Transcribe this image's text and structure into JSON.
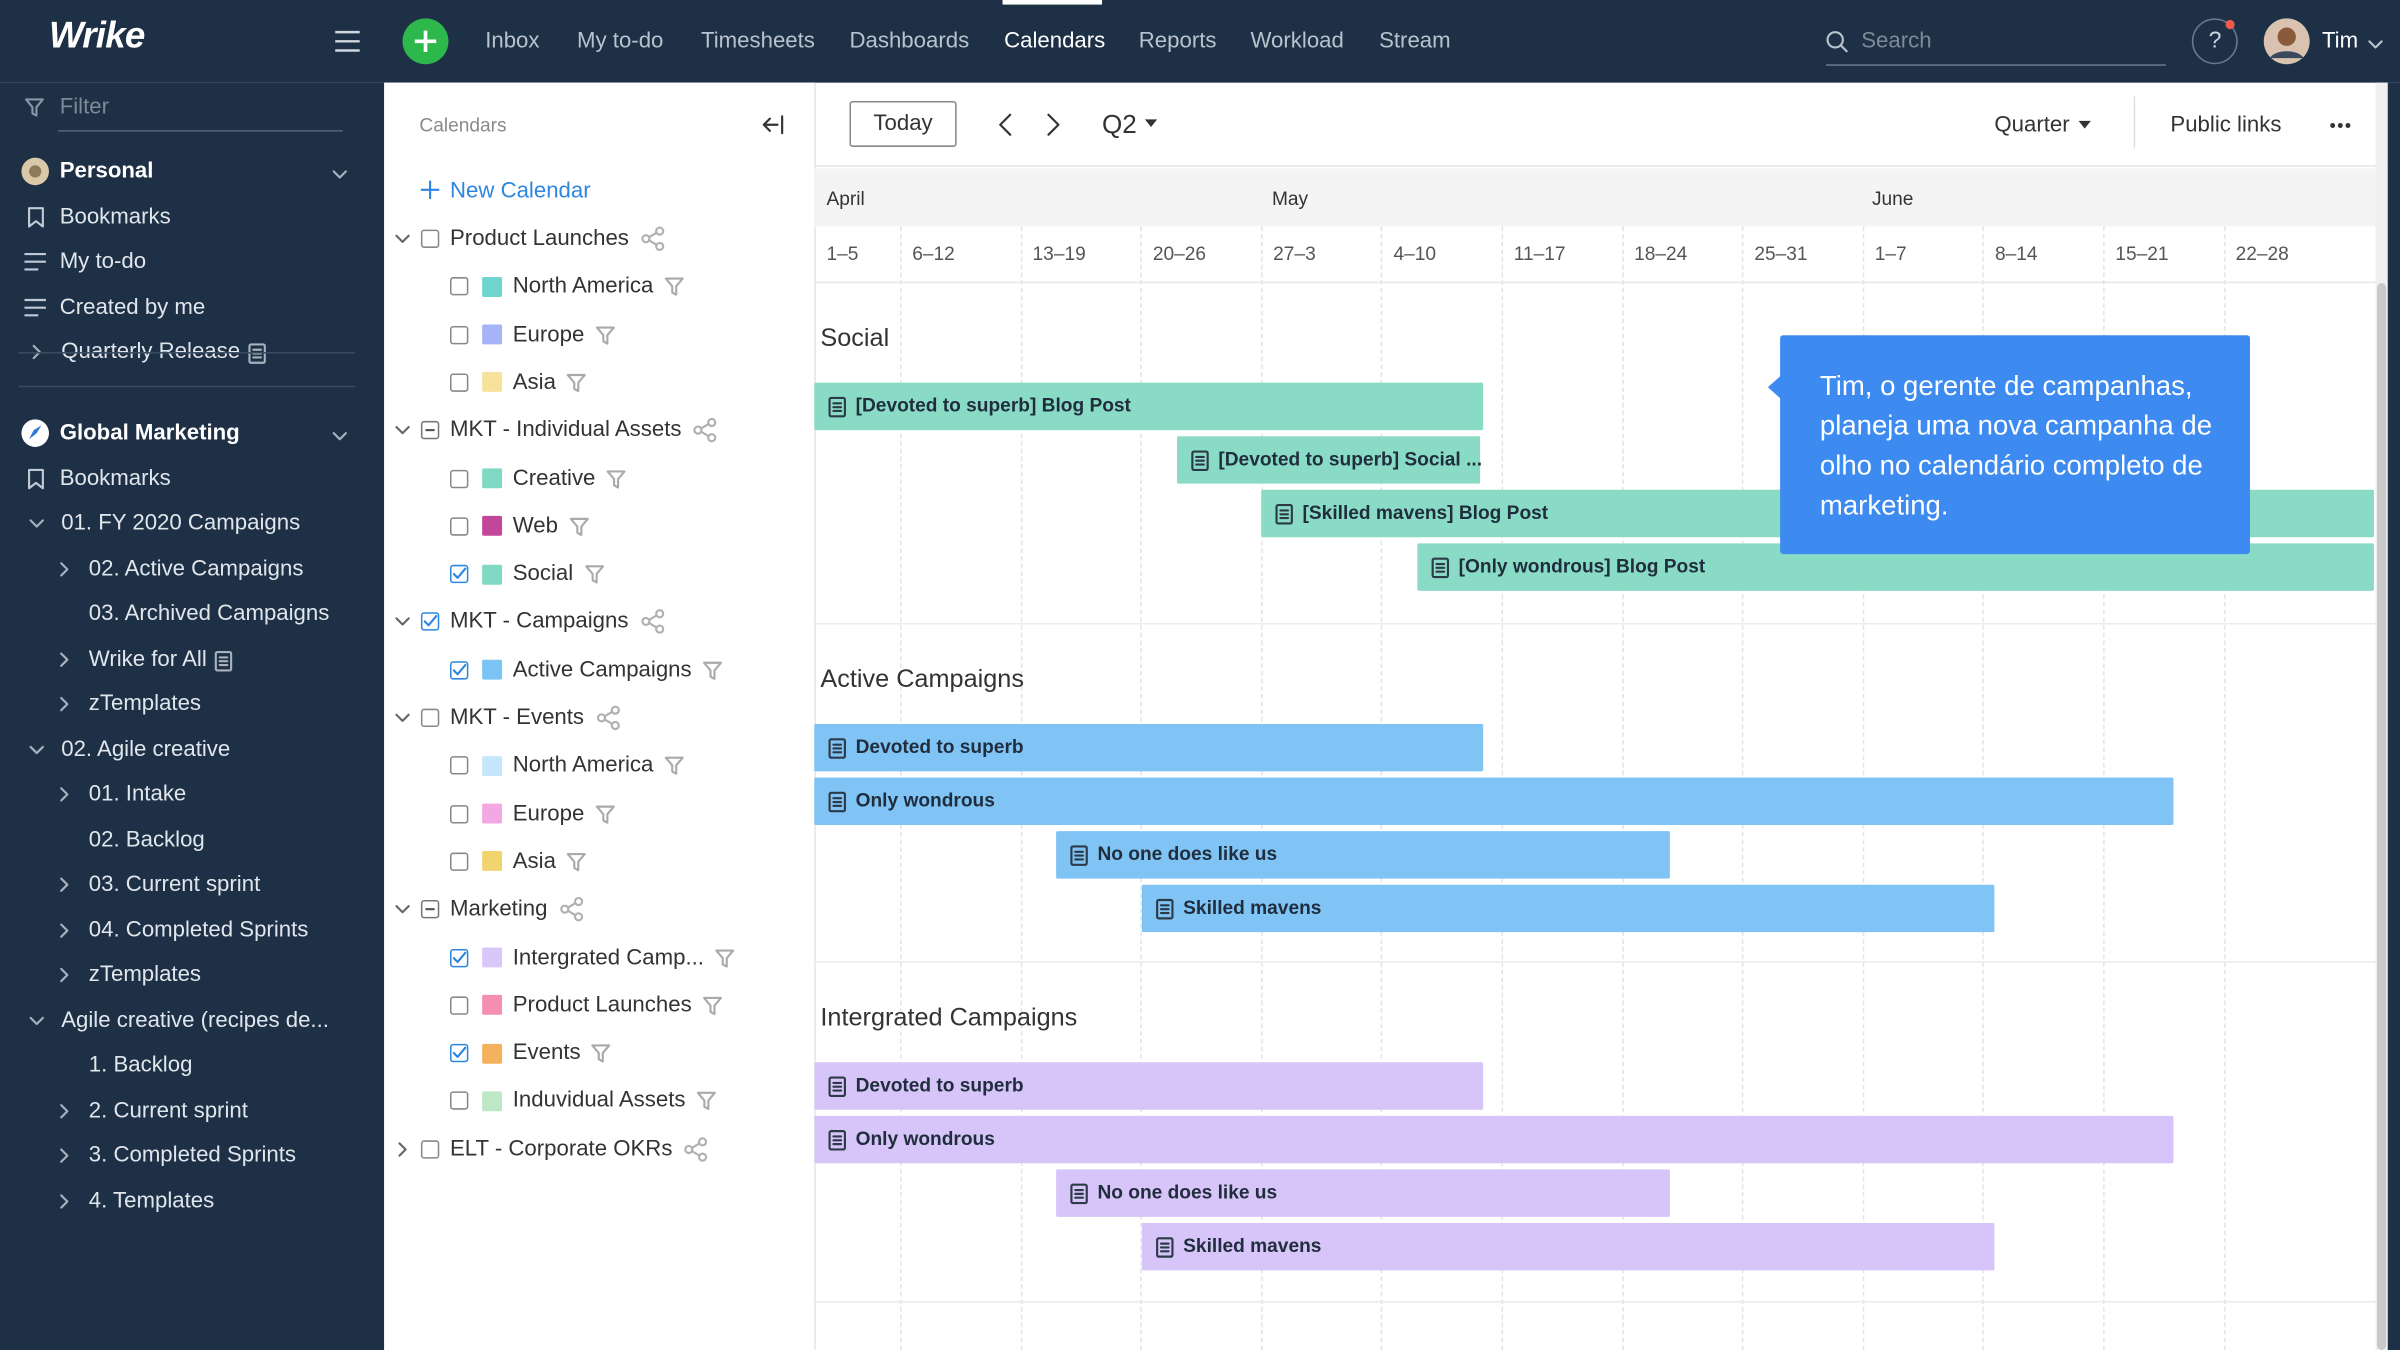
{
  "topbar": {
    "logo": "Wrike",
    "nav": [
      "Inbox",
      "My to-do",
      "Timesheets",
      "Dashboards",
      "Calendars",
      "Reports",
      "Workload",
      "Stream"
    ],
    "active": 4,
    "search": "Search",
    "help": "?",
    "user": "Tim"
  },
  "sidebar": {
    "filter": "Filter",
    "items": [
      {
        "label": "Personal",
        "level": 0,
        "bold": true,
        "icon": "avatar",
        "toggle": "caret"
      },
      {
        "label": "Bookmarks",
        "level": 0,
        "icon": "bookmark"
      },
      {
        "label": "My to-do",
        "level": 0,
        "icon": "list"
      },
      {
        "label": "Created by me",
        "level": 0,
        "icon": "list"
      },
      {
        "label": "Quarterly Release",
        "level": 1,
        "chevron": "right",
        "doc": true
      },
      {
        "label": "Global Marketing",
        "level": 0,
        "bold": true,
        "icon": "rocket",
        "toggle": "caret",
        "divider": true
      },
      {
        "label": "Bookmarks",
        "level": 0,
        "icon": "bookmark"
      },
      {
        "label": "01. FY 2020 Campaigns",
        "level": 1,
        "chevron": "down"
      },
      {
        "label": "02. Active Campaigns",
        "level": 2,
        "chevron": "right"
      },
      {
        "label": "03. Archived Campaigns",
        "level": 2
      },
      {
        "label": "Wrike for All",
        "level": 2,
        "chevron": "right",
        "doc": true
      },
      {
        "label": "zTemplates",
        "level": 2,
        "chevron": "right"
      },
      {
        "label": "02. Agile creative",
        "level": 1,
        "chevron": "down"
      },
      {
        "label": "01. Intake",
        "level": 2,
        "chevron": "right"
      },
      {
        "label": "02. Backlog",
        "level": 2
      },
      {
        "label": "03. Current sprint",
        "level": 2,
        "chevron": "right"
      },
      {
        "label": "04. Completed Sprints",
        "level": 2,
        "chevron": "right"
      },
      {
        "label": "zTemplates",
        "level": 2,
        "chevron": "right"
      },
      {
        "label": "Agile creative (recipes de...",
        "level": 1,
        "chevron": "down"
      },
      {
        "label": "1. Backlog",
        "level": 2
      },
      {
        "label": "2. Current sprint",
        "level": 2,
        "chevron": "right"
      },
      {
        "label": "3. Completed Sprints",
        "level": 2,
        "chevron": "right"
      },
      {
        "label": "4. Templates",
        "level": 2,
        "chevron": "right"
      }
    ]
  },
  "calendars": {
    "title": "Calendars",
    "new": "New Calendar",
    "groups": [
      {
        "name": "Product Launches",
        "check": "empty",
        "open": true,
        "items": [
          {
            "name": "North America",
            "color": "#6fd6cf",
            "check": "empty"
          },
          {
            "name": "Europe",
            "color": "#a5b4f7",
            "check": "empty"
          },
          {
            "name": "Asia",
            "color": "#f6e29a",
            "check": "empty"
          }
        ]
      },
      {
        "name": "MKT - Individual Assets",
        "check": "partial",
        "open": true,
        "items": [
          {
            "name": "Creative",
            "color": "#7fd9c5",
            "check": "empty"
          },
          {
            "name": "Web",
            "color": "#c2479b",
            "check": "empty"
          },
          {
            "name": "Social",
            "color": "#7fd9c5",
            "check": "checked"
          }
        ]
      },
      {
        "name": "MKT - Campaigns",
        "check": "checked",
        "open": true,
        "items": [
          {
            "name": "Active Campaigns",
            "color": "#7cc4f5",
            "check": "checked"
          }
        ]
      },
      {
        "name": "MKT - Events",
        "check": "empty",
        "open": true,
        "items": [
          {
            "name": "North America",
            "color": "#c6e6fb",
            "check": "empty"
          },
          {
            "name": "Europe",
            "color": "#f3a8e3",
            "check": "empty"
          },
          {
            "name": "Asia",
            "color": "#f2d46f",
            "check": "empty"
          }
        ]
      },
      {
        "name": "Marketing",
        "check": "partial",
        "open": true,
        "items": [
          {
            "name": "Intergrated Camp...",
            "color": "#dac7fa",
            "check": "checked"
          },
          {
            "name": "Product Launches",
            "color": "#f58fb1",
            "check": "empty"
          },
          {
            "name": "Events",
            "color": "#f5b25e",
            "check": "checked"
          },
          {
            "name": "Induvidual Assets",
            "color": "#bde8c6",
            "check": "empty"
          }
        ]
      },
      {
        "name": "ELT - Corporate OKRs",
        "check": "empty",
        "open": false,
        "items": []
      }
    ]
  },
  "toolbar": {
    "today": "Today",
    "period": "Q2",
    "view": "Quarter",
    "links": "Public links"
  },
  "timeline": {
    "months": [
      "April",
      "May",
      "June"
    ],
    "weeks": [
      "1–5",
      "6–12",
      "13–19",
      "20–26",
      "27–3",
      "4–10",
      "11–17",
      "18–24",
      "25–31",
      "1–7",
      "8–14",
      "15–21",
      "22–28"
    ],
    "sections": [
      {
        "title": "Social",
        "color": "#8adbc6",
        "bars": [
          "[Devoted to superb] Blog Post",
          "[Devoted to superb] Social ...",
          "[Skilled mavens] Blog Post",
          "[Only wondrous] Blog Post"
        ]
      },
      {
        "title": "Active Campaigns",
        "color": "#80c4f6",
        "bars": [
          "Devoted to superb",
          "Only wondrous",
          "No one does like us",
          "Skilled mavens"
        ]
      },
      {
        "title": "Intergrated Campaigns",
        "color": "#d7c4f8",
        "bars": [
          "Devoted to superb",
          "Only wondrous",
          "No one does like us",
          "Skilled mavens"
        ]
      }
    ],
    "tooltip": "Tim, o gerente de campanhas, planeja uma nova campanha de olho no calendário completo de marketing."
  }
}
